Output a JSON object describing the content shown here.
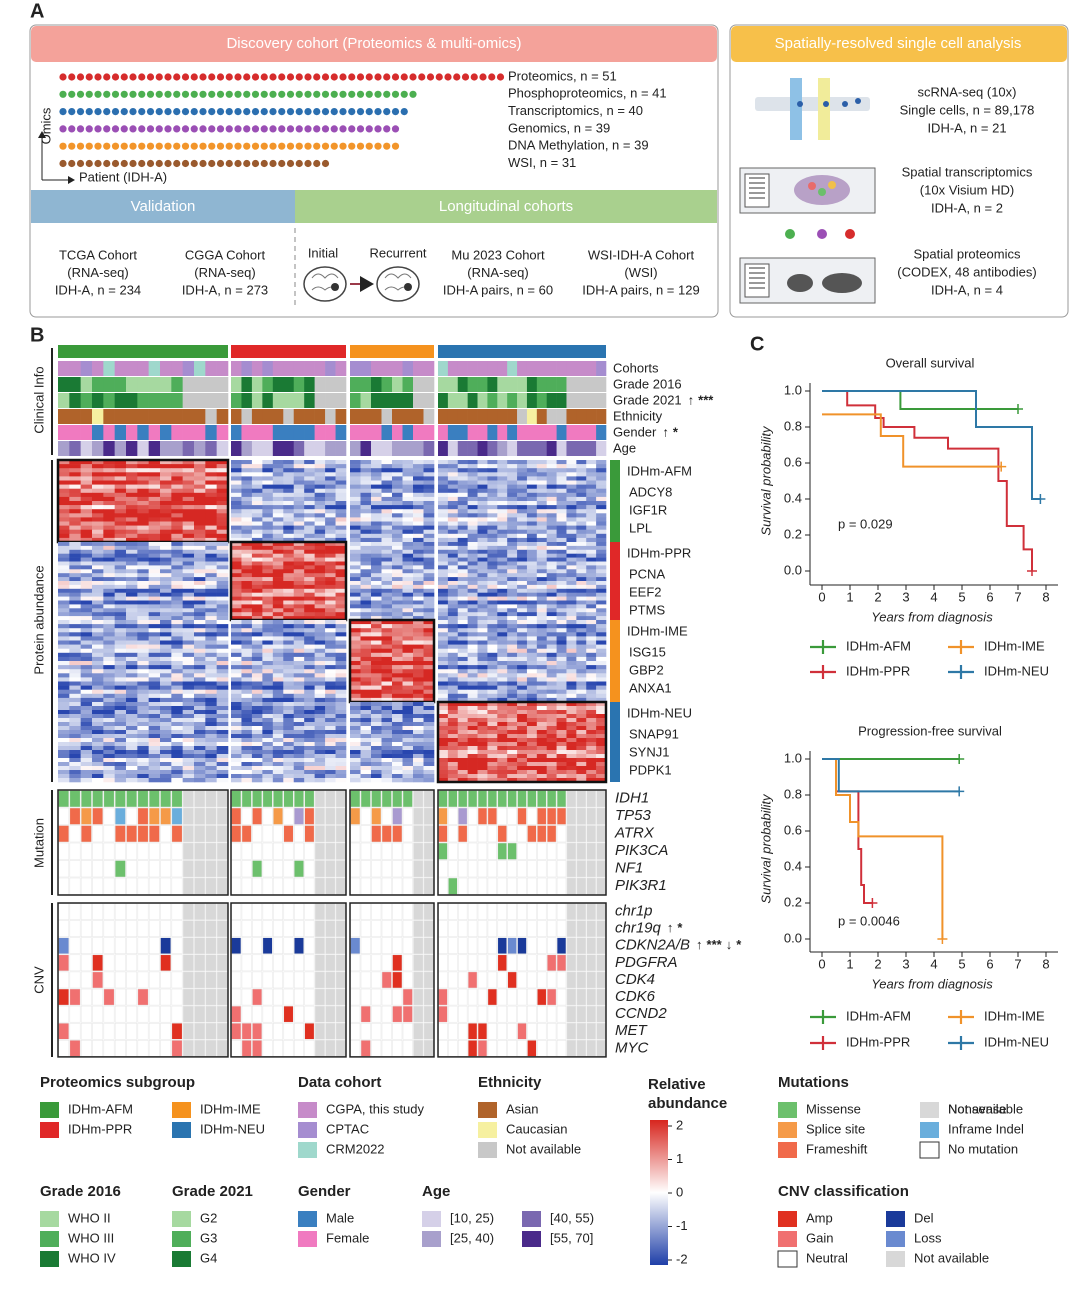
{
  "panel_labels": [
    "A",
    "B",
    "C"
  ],
  "discovery": {
    "title": "Discovery cohort (Proteomics & multi-omics)",
    "y_axis": "Omics",
    "x_axis": "Patient (IDH-A)",
    "omics": [
      {
        "label": "Proteomics, n = 51",
        "n": 51,
        "color": "#d62c2c"
      },
      {
        "label": "Phosphoproteomics, n = 41",
        "n": 41,
        "color": "#4caf50"
      },
      {
        "label": "Transcriptomics, n = 40",
        "n": 40,
        "color": "#2b6fb0"
      },
      {
        "label": "Genomics, n = 39",
        "n": 39,
        "color": "#9b4fb5"
      },
      {
        "label": "DNA Methylation, n = 39",
        "n": 39,
        "color": "#f2952a"
      },
      {
        "label": "WSI, n = 31",
        "n": 31,
        "color": "#9a5a2e"
      }
    ]
  },
  "validation": {
    "title": "Validation",
    "cohorts": [
      [
        "TCGA Cohort",
        "(RNA-seq)",
        "IDH-A, n = 234"
      ],
      [
        "CGGA Cohort",
        "(RNA-seq)",
        "IDH-A, n = 273"
      ]
    ]
  },
  "longitudinal": {
    "title": "Longitudinal cohorts",
    "initial": "Initial",
    "recurrent": "Recurrent",
    "cohorts": [
      [
        "Mu 2023 Cohort",
        "(RNA-seq)",
        "IDH-A pairs, n = 60"
      ],
      [
        "WSI-IDH-A Cohort",
        "(WSI)",
        "IDH-A pairs, n = 129"
      ]
    ]
  },
  "spatial": {
    "title": "Spatially-resolved single cell analysis",
    "items": [
      [
        "scRNA-seq (10x)",
        "Single cells, n = 89,178",
        "IDH-A, n = 21"
      ],
      [
        "Spatial transcriptomics",
        "(10x Visium HD)",
        "IDH-A, n = 2"
      ],
      [
        "Spatial proteomics",
        "(CODEX, 48 antibodies)",
        "IDH-A, n = 4"
      ]
    ]
  },
  "heatmap": {
    "sections": [
      "Clinical Info",
      "Protein abundance",
      "Mutation",
      "CNV"
    ],
    "clinical_rows": [
      {
        "label": "Cohorts"
      },
      {
        "label": "Grade 2016"
      },
      {
        "label": "Grade 2021",
        "sig": [
          {
            "text": "↑",
            "color": "#d62c2c"
          },
          {
            "text": "***",
            "color": "#222"
          }
        ]
      },
      {
        "label": "Ethnicity"
      },
      {
        "label": "Gender",
        "sig": [
          {
            "text": "↑",
            "color": "#2b6fb0"
          },
          {
            "text": "*",
            "color": "#222"
          }
        ]
      },
      {
        "label": "Age"
      }
    ],
    "subgroups": [
      {
        "name": "IDHm-AFM",
        "genes": [
          "ADCY8",
          "IGF1R",
          "LPL"
        ]
      },
      {
        "name": "IDHm-PPR",
        "genes": [
          "PCNA",
          "EEF2",
          "PTMS"
        ]
      },
      {
        "name": "IDHm-IME",
        "genes": [
          "ISG15",
          "GBP2",
          "ANXA1"
        ]
      },
      {
        "name": "IDHm-NEU",
        "genes": [
          "SNAP91",
          "SYNJ1",
          "PDPK1"
        ]
      }
    ],
    "mutation_rows": [
      {
        "label": "IDH1"
      },
      {
        "label": "TP53"
      },
      {
        "label": "ATRX"
      },
      {
        "label": "PIK3CA"
      },
      {
        "label": "NF1"
      },
      {
        "label": "PIK3R1"
      }
    ],
    "cnv_rows": [
      {
        "label": "chr1p"
      },
      {
        "label": "chr19q",
        "sig": [
          {
            "text": "↑",
            "color": "#d62c2c"
          },
          {
            "text": "*",
            "color": "#222"
          }
        ]
      },
      {
        "label": "CDKN2A/B",
        "sig": [
          {
            "text": "↑",
            "color": "#d62c2c"
          },
          {
            "text": "***",
            "color": "#222"
          },
          {
            "text": "↓",
            "color": "#4caf50"
          },
          {
            "text": "*",
            "color": "#222"
          }
        ]
      },
      {
        "label": "PDGFRA"
      },
      {
        "label": "CDK4"
      },
      {
        "label": "CDK6"
      },
      {
        "label": "CCND2"
      },
      {
        "label": "MET"
      },
      {
        "label": "MYC"
      }
    ]
  },
  "legends": [
    {
      "title": "Proteomics subgroup",
      "items": [
        {
          "label": "IDHm-AFM",
          "color": "#3a9a3a"
        },
        {
          "label": "IDHm-PPR",
          "color": "#e02828"
        },
        {
          "label": "IDHm-IME",
          "color": "#f5921e"
        },
        {
          "label": "IDHm-NEU",
          "color": "#2a74b0"
        }
      ]
    },
    {
      "title": "Data cohort",
      "items": [
        {
          "label": "CGPA, this study",
          "color": "#c68bc9"
        },
        {
          "label": "CPTAC",
          "color": "#a58dd0"
        },
        {
          "label": "CRM2022",
          "color": "#9fd8cc"
        }
      ]
    },
    {
      "title": "Ethnicity",
      "items": [
        {
          "label": "Asian",
          "color": "#b0632a"
        },
        {
          "label": "Caucasian",
          "color": "#f6f0a0"
        },
        {
          "label": "Not available",
          "color": "#c8c8c8"
        }
      ]
    },
    {
      "title": "Mutations",
      "items": [
        {
          "label": "Missense",
          "color": "#6cc06c"
        },
        {
          "label": "Splice site",
          "color": "#f59a48"
        },
        {
          "label": "Frameshift",
          "color": "#f06a4a"
        },
        {
          "label": "Nonsense",
          "color": "#a99ad0"
        },
        {
          "label": "Inframe Indel",
          "color": "#6aaedc"
        },
        {
          "label": "No mutation",
          "color": "#ffffff"
        },
        {
          "label": "Not available",
          "color": "#d8d8d8"
        }
      ]
    },
    {
      "title": "Grade 2016",
      "items": [
        {
          "label": "WHO II",
          "color": "#a6d9a0"
        },
        {
          "label": "WHO III",
          "color": "#4fae5a"
        },
        {
          "label": "WHO IV",
          "color": "#1a7a34"
        }
      ]
    },
    {
      "title": "Grade 2021",
      "items": [
        {
          "label": "G2",
          "color": "#a6d9a0"
        },
        {
          "label": "G3",
          "color": "#4fae5a"
        },
        {
          "label": "G4",
          "color": "#1a7a34"
        }
      ]
    },
    {
      "title": "Gender",
      "items": [
        {
          "label": "Male",
          "color": "#3a7fc0"
        },
        {
          "label": "Female",
          "color": "#f07ac0"
        }
      ]
    },
    {
      "title": "Age",
      "items": [
        {
          "label": "[10, 25)",
          "color": "#d5d0e8"
        },
        {
          "label": "[25, 40)",
          "color": "#a8a0cc"
        },
        {
          "label": "[40, 55)",
          "color": "#7a68b0"
        },
        {
          "label": "[55, 70]",
          "color": "#4a2a8a"
        }
      ]
    },
    {
      "title": "CNV classification",
      "items": [
        {
          "label": "Amp",
          "color": "#e03020"
        },
        {
          "label": "Gain",
          "color": "#f07070"
        },
        {
          "label": "Neutral",
          "color": "#ffffff"
        },
        {
          "label": "Del",
          "color": "#1a3a9a"
        },
        {
          "label": "Loss",
          "color": "#6a8ad0"
        },
        {
          "label": "Not available",
          "color": "#d8d8d8"
        }
      ]
    }
  ],
  "colorbar": {
    "title": [
      "Relative",
      "abundance"
    ],
    "ticks": [
      2,
      1,
      0,
      -1,
      -2
    ]
  },
  "chart_data": [
    {
      "type": "line",
      "title": "Overall survival",
      "xlabel": "Years from diagnosis",
      "ylabel": "Survival probability",
      "annotation": "p = 0.029",
      "xlim": [
        0,
        8
      ],
      "xticks": [
        0,
        1,
        2,
        3,
        4,
        5,
        6,
        7,
        8
      ],
      "ylim": [
        0,
        1
      ],
      "yticks": [
        {
          "value": 0,
          "label": "0.0"
        },
        {
          "value": 0.2,
          "label": "0.2"
        },
        {
          "value": 0.4,
          "label": "0.4"
        },
        {
          "value": 0.6,
          "label": "0.6"
        },
        {
          "value": 0.8,
          "label": "0.8"
        },
        {
          "value": 1,
          "label": "1.0"
        }
      ],
      "series": [
        {
          "name": "IDHm-AFM",
          "color": "#3a9a3a",
          "x": [
            0,
            2.8,
            7.0
          ],
          "values": [
            1,
            0.9,
            0.9
          ]
        },
        {
          "name": "IDHm-PPR",
          "color": "#d0303a",
          "x": [
            0,
            0.9,
            1.9,
            2.2,
            3.3,
            4.5,
            6.3,
            6.6,
            7.2,
            7.5
          ],
          "values": [
            1,
            0.92,
            0.85,
            0.8,
            0.74,
            0.68,
            0.5,
            0.25,
            0.12,
            0.0
          ]
        },
        {
          "name": "IDHm-IME",
          "color": "#f0922a",
          "x": [
            0,
            2.1,
            2.9,
            6.4
          ],
          "values": [
            0.87,
            0.75,
            0.58,
            0.58
          ]
        },
        {
          "name": "IDHm-NEU",
          "color": "#2e78a6",
          "x": [
            0,
            5.5,
            7.5,
            7.8
          ],
          "values": [
            1,
            0.8,
            0.4,
            0.4
          ]
        }
      ]
    },
    {
      "type": "line",
      "title": "Progression-free survival",
      "xlabel": "Years from diagnosis",
      "ylabel": "Survival probability",
      "annotation": "p = 0.0046",
      "xlim": [
        0,
        8
      ],
      "xticks": [
        0,
        1,
        2,
        3,
        4,
        5,
        6,
        7,
        8
      ],
      "ylim": [
        0,
        1
      ],
      "yticks": [
        {
          "value": 0,
          "label": "0.0"
        },
        {
          "value": 0.2,
          "label": "0.2"
        },
        {
          "value": 0.4,
          "label": "0.4"
        },
        {
          "value": 0.6,
          "label": "0.6"
        },
        {
          "value": 0.8,
          "label": "0.8"
        },
        {
          "value": 1,
          "label": "1.0"
        }
      ],
      "series": [
        {
          "name": "IDHm-AFM",
          "color": "#3a9a3a",
          "x": [
            0,
            4.9
          ],
          "values": [
            1,
            1
          ]
        },
        {
          "name": "IDHm-PPR",
          "color": "#d0303a",
          "x": [
            0,
            0.5,
            1.3,
            1.4,
            1.5,
            1.8
          ],
          "values": [
            1,
            0.82,
            0.5,
            0.3,
            0.2,
            0.2
          ]
        },
        {
          "name": "IDHm-IME",
          "color": "#f0922a",
          "x": [
            0,
            0.5,
            1.0,
            1.3,
            4.3
          ],
          "values": [
            1,
            0.8,
            0.65,
            0.57,
            0.0
          ]
        },
        {
          "name": "IDHm-NEU",
          "color": "#2e78a6",
          "x": [
            0,
            0.6,
            4.9
          ],
          "values": [
            1,
            0.82,
            0.82
          ]
        }
      ]
    }
  ]
}
